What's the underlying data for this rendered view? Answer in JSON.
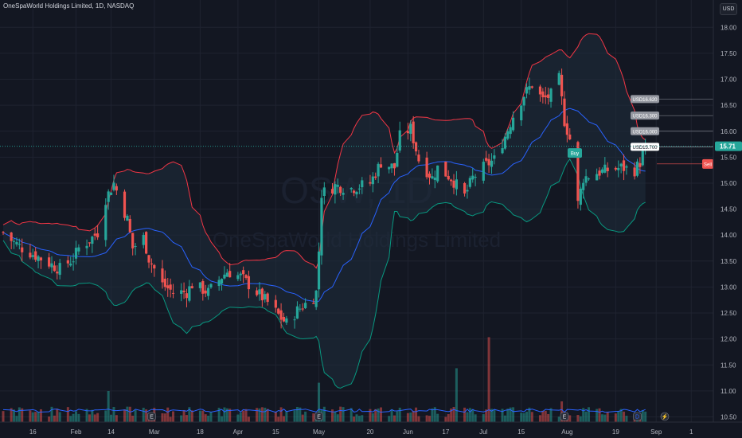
{
  "header": {
    "symbol_line": "OneSpaWorld Holdings Limited, 1D, NASDAQ"
  },
  "currency_button": "USD",
  "watermark": {
    "ticker": "OSW, 1D",
    "name": "OneSpaWorld Holdings Limited"
  },
  "colors": {
    "background": "#131722",
    "up": "#26a69a",
    "down": "#ef5350",
    "sma": "#2962ff",
    "upper_band": "#f23645",
    "lower_band": "#089981",
    "band_fill": "#1f2d3d"
  },
  "chart_data": {
    "type": "candlestick",
    "ylim": [
      10.4,
      18.25
    ],
    "y_ticks": [
      "10.50",
      "11.00",
      "11.50",
      "12.00",
      "12.50",
      "13.00",
      "13.50",
      "14.00",
      "14.50",
      "15.00",
      "15.50",
      "16.00",
      "16.50",
      "17.00",
      "17.50",
      "18.00"
    ],
    "x_ticks": [
      {
        "label": "16",
        "date": "2024-01-16"
      },
      {
        "label": "Feb",
        "date": "2024-02-01"
      },
      {
        "label": "14",
        "date": "2024-02-14"
      },
      {
        "label": "Mar",
        "date": "2024-03-01"
      },
      {
        "label": "18",
        "date": "2024-03-18"
      },
      {
        "label": "Apr",
        "date": "2024-04-01"
      },
      {
        "label": "15",
        "date": "2024-04-15"
      },
      {
        "label": "May",
        "date": "2024-05-01"
      },
      {
        "label": "20",
        "date": "2024-05-20"
      },
      {
        "label": "Jun",
        "date": "2024-06-03"
      },
      {
        "label": "17",
        "date": "2024-06-17"
      },
      {
        "label": "Jul",
        "date": "2024-07-01"
      },
      {
        "label": "15",
        "date": "2024-07-15"
      },
      {
        "label": "Aug",
        "date": "2024-08-01"
      },
      {
        "label": "19",
        "date": "2024-08-19"
      },
      {
        "label": "Sep",
        "date": "2024-09-03"
      },
      {
        "label": "1",
        "date": "2024-09-16"
      }
    ],
    "x_domain": [
      "2024-01-05",
      "2024-09-23"
    ],
    "close_anchors": [
      [
        "2024-01-05",
        14.05
      ],
      [
        "2024-01-08",
        13.9
      ],
      [
        "2024-01-12",
        13.75
      ],
      [
        "2024-01-19",
        13.55
      ],
      [
        "2024-01-24",
        13.4
      ],
      [
        "2024-01-26",
        13.35
      ],
      [
        "2024-01-31",
        13.55
      ],
      [
        "2024-02-02",
        13.75
      ],
      [
        "2024-02-06",
        13.9
      ],
      [
        "2024-02-09",
        14.05
      ],
      [
        "2024-02-12",
        14.7
      ],
      [
        "2024-02-15",
        15.0
      ],
      [
        "2024-02-20",
        14.3
      ],
      [
        "2024-02-22",
        13.75
      ],
      [
        "2024-02-26",
        13.95
      ],
      [
        "2024-02-28",
        13.55
      ],
      [
        "2024-03-04",
        13.05
      ],
      [
        "2024-03-08",
        12.9
      ],
      [
        "2024-03-13",
        12.9
      ],
      [
        "2024-03-15",
        13.05
      ],
      [
        "2024-03-21",
        12.9
      ],
      [
        "2024-03-26",
        13.2
      ],
      [
        "2024-03-28",
        13.3
      ],
      [
        "2024-04-02",
        13.2
      ],
      [
        "2024-04-08",
        12.9
      ],
      [
        "2024-04-12",
        12.7
      ],
      [
        "2024-04-17",
        12.4
      ],
      [
        "2024-04-19",
        12.3
      ],
      [
        "2024-04-23",
        12.55
      ],
      [
        "2024-04-29",
        12.8
      ],
      [
        "2024-04-30",
        12.9
      ],
      [
        "2024-05-01",
        13.7
      ],
      [
        "2024-05-02",
        14.8
      ],
      [
        "2024-05-07",
        14.95
      ],
      [
        "2024-05-13",
        14.9
      ],
      [
        "2024-05-20",
        15.0
      ],
      [
        "2024-05-24",
        15.4
      ],
      [
        "2024-05-29",
        15.3
      ],
      [
        "2024-05-31",
        15.9
      ],
      [
        "2024-06-04",
        16.05
      ],
      [
        "2024-06-07",
        15.45
      ],
      [
        "2024-06-12",
        15.1
      ],
      [
        "2024-06-14",
        15.3
      ],
      [
        "2024-06-19",
        15.1
      ],
      [
        "2024-06-24",
        14.75
      ],
      [
        "2024-06-27",
        15.1
      ],
      [
        "2024-07-02",
        15.35
      ],
      [
        "2024-07-05",
        15.45
      ],
      [
        "2024-07-09",
        15.9
      ],
      [
        "2024-07-12",
        16.3
      ],
      [
        "2024-07-16",
        16.7
      ],
      [
        "2024-07-19",
        16.9
      ],
      [
        "2024-07-23",
        16.6
      ],
      [
        "2024-07-26",
        16.7
      ],
      [
        "2024-07-29",
        17.0
      ],
      [
        "2024-07-31",
        16.2
      ],
      [
        "2024-08-02",
        15.85
      ],
      [
        "2024-08-05",
        14.6
      ],
      [
        "2024-08-07",
        15.1
      ],
      [
        "2024-08-12",
        15.2
      ],
      [
        "2024-08-16",
        15.25
      ],
      [
        "2024-08-21",
        15.3
      ],
      [
        "2024-08-26",
        15.25
      ],
      [
        "2024-08-28",
        15.4
      ],
      [
        "2024-08-30",
        15.71
      ]
    ],
    "volume_spikes": [
      [
        "2024-05-01",
        0.38
      ],
      [
        "2024-06-21",
        0.52
      ],
      [
        "2024-07-03",
        0.82
      ],
      [
        "2024-02-13",
        0.3
      ],
      [
        "2024-07-30",
        0.2
      ]
    ],
    "last_price": "15.71",
    "buy_label": "Buy",
    "sell_label": "Sell",
    "order_tags": [
      {
        "label": "USD16.620",
        "price": 16.62
      },
      {
        "label": "USD16.300",
        "price": 16.3
      },
      {
        "label": "USD16.000",
        "price": 16.0
      },
      {
        "label": "USD15.700",
        "price": 15.7
      }
    ],
    "buy_price": 15.58,
    "sell_price": 15.37,
    "current_line_price": 15.71,
    "volume_max_px": 130,
    "volume_base_y": 530
  },
  "footer_markers": [
    {
      "date": "2024-02-29",
      "kind": "E"
    },
    {
      "date": "2024-05-01",
      "kind": "E"
    },
    {
      "date": "2024-07-31",
      "kind": "E"
    },
    {
      "date": "2024-08-27",
      "kind": "D"
    }
  ],
  "footer_lightning": "⚡"
}
